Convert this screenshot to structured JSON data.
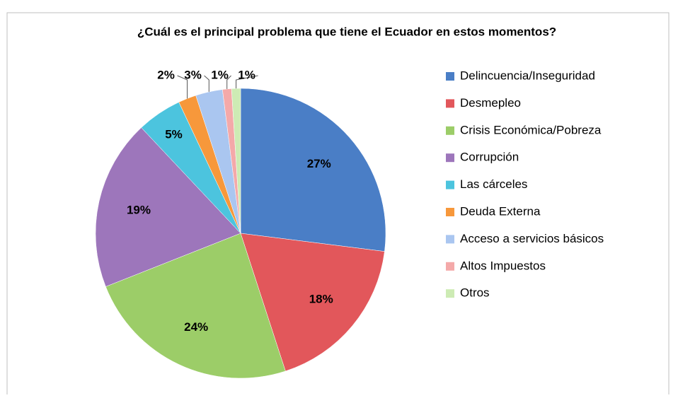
{
  "chart_data": {
    "type": "pie",
    "title": "¿Cuál es el principal problema que tiene el Ecuador en estos momentos?",
    "categories": [
      "Delincuencia/Inseguridad",
      "Desmepleo",
      "Crisis Económica/Pobreza",
      "Corrupción",
      "Las cárceles",
      "Deuda Externa",
      "Acceso a servicios básicos",
      "Altos Impuestos",
      "Otros"
    ],
    "values": [
      27,
      18,
      24,
      19,
      5,
      2,
      3,
      1,
      1
    ],
    "value_labels": [
      "27%",
      "18%",
      "24%",
      "19%",
      "5%",
      "2%",
      "3%",
      "1%",
      "1%"
    ],
    "colors": [
      "#4a7ec6",
      "#e2575b",
      "#9ccd68",
      "#9d76bb",
      "#4cc4de",
      "#f7983b",
      "#aac6f0",
      "#f4a9a9",
      "#cdebb4"
    ],
    "legend": "right"
  }
}
